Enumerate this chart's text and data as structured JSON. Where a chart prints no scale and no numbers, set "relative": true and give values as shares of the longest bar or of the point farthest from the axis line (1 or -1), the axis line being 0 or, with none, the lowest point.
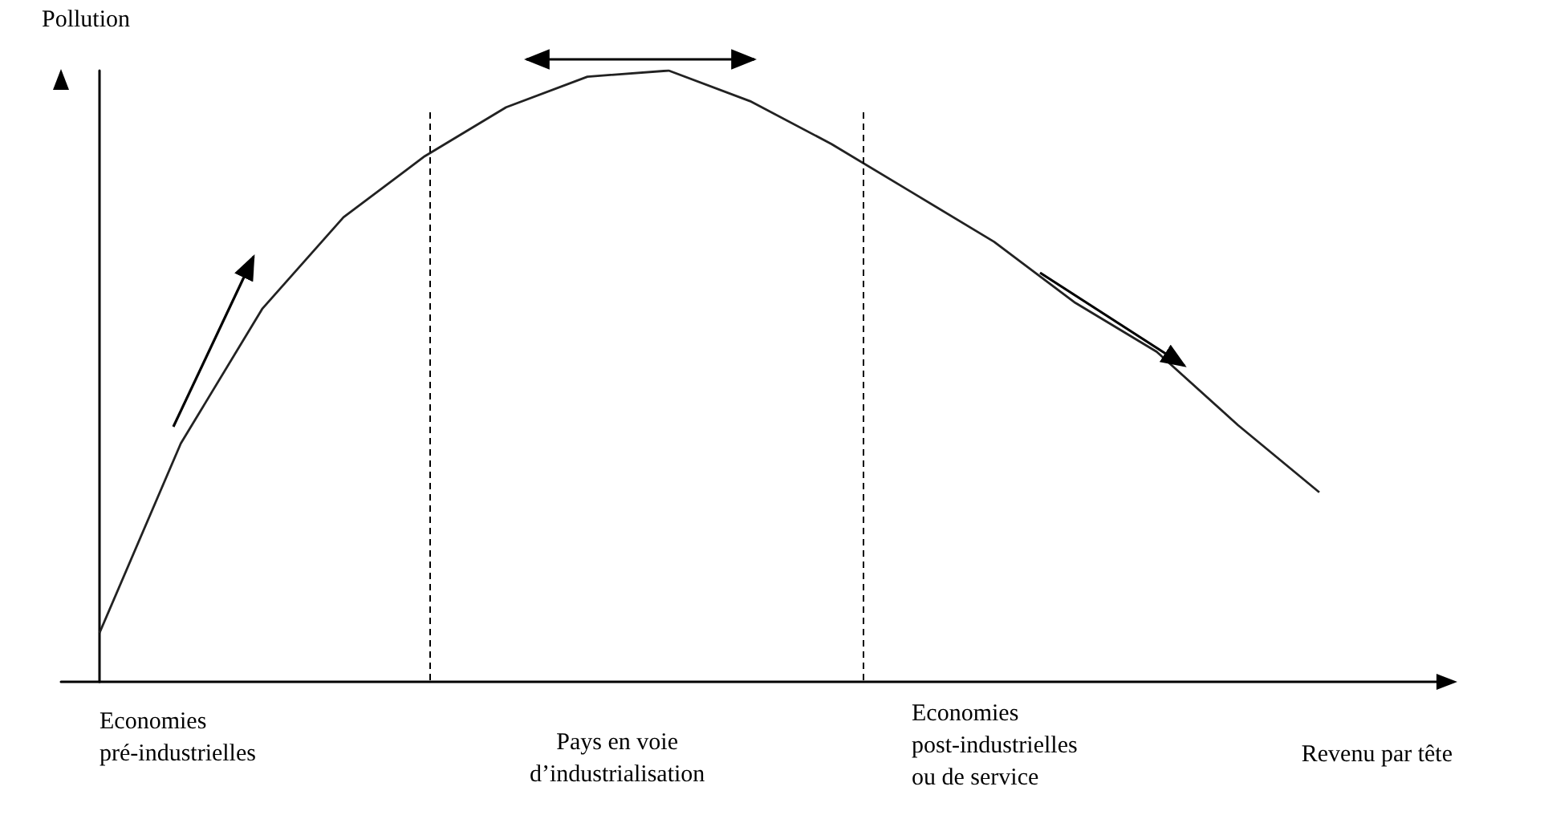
{
  "chart_data": {
    "type": "line",
    "relative": true,
    "xlabel": "Revenu par tête",
    "ylabel": "Pollution",
    "categories": [
      null,
      null,
      null,
      null,
      null,
      null,
      null,
      null,
      null,
      null,
      null,
      null,
      null,
      null,
      null,
      null
    ],
    "series": [
      {
        "color": "#222222",
        "values": [
          0.08,
          0.39,
          0.61,
          0.76,
          0.86,
          0.94,
          0.99,
          1,
          0.95,
          0.88,
          0.8,
          0.72,
          0.62,
          0.54,
          0.42,
          0.31
        ]
      }
    ],
    "annotations": [
      "Economies\npré-industrielles",
      "Pays en voie\nd’industrialisation",
      "Economies\npost-industrielles\nou de service"
    ],
    "marker": "none",
    "line_style": "solid",
    "grid": false
  }
}
